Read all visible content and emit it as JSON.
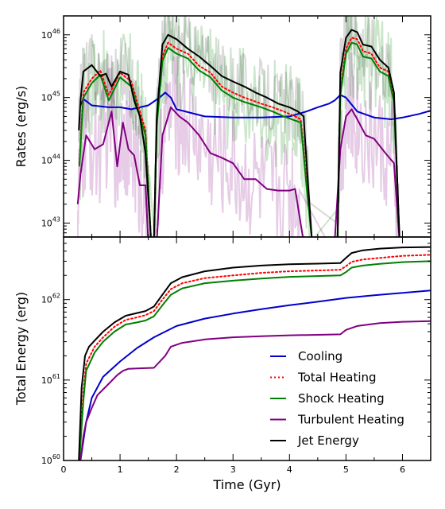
{
  "chart_data": [
    {
      "type": "line",
      "panel": "top",
      "xlim": [
        0,
        6.5
      ],
      "ylim": [
        6e+42,
        2e+46
      ],
      "yscale": "log",
      "xlabel": "",
      "ylabel": "Rates (erg/s)",
      "yticks": [
        {
          "value": 1e+43,
          "base": "10",
          "exp": "43"
        },
        {
          "value": 1e+44,
          "base": "10",
          "exp": "44"
        },
        {
          "value": 1e+45,
          "base": "10",
          "exp": "45"
        },
        {
          "value": 1e+46,
          "base": "10",
          "exp": "46"
        }
      ],
      "series": [
        {
          "name": "Cooling",
          "color": "#0000cc",
          "style": "solid",
          "x": [
            0.3,
            0.35,
            0.5,
            0.8,
            1.0,
            1.2,
            1.5,
            1.7,
            1.8,
            1.9,
            2.0,
            2.5,
            3.0,
            3.5,
            4.0,
            4.3,
            4.5,
            4.7,
            4.8,
            4.9,
            5.0,
            5.2,
            5.5,
            5.8,
            6.0,
            6.3,
            6.5
          ],
          "y": [
            7.5e+44,
            9.5e+44,
            7.5e+44,
            7e+44,
            7e+44,
            6.5e+44,
            7.5e+44,
            1e+45,
            1.2e+45,
            1e+45,
            6.5e+44,
            5e+44,
            4.8e+44,
            4.8e+44,
            5e+44,
            6e+44,
            7e+44,
            8e+44,
            9e+44,
            1.1e+45,
            1e+45,
            6e+44,
            4.8e+44,
            4.5e+44,
            4.8e+44,
            5.5e+44,
            6.2e+44
          ]
        },
        {
          "name": "Total Heating",
          "color": "#ff0000",
          "style": "dotted",
          "x": [
            0.28,
            0.35,
            0.5,
            0.65,
            0.8,
            1.0,
            1.2,
            1.35,
            1.45,
            1.55,
            1.6,
            1.65,
            1.75,
            1.85,
            2.0,
            2.2,
            2.4,
            2.6,
            2.8,
            3.0,
            3.2,
            3.5,
            3.7,
            3.9,
            4.1,
            4.2,
            4.3,
            4.4,
            4.85,
            4.9,
            5.0,
            5.1,
            5.2,
            5.3,
            5.45,
            5.6,
            5.75,
            5.85,
            5.95
          ],
          "y": [
            9e+43,
            1.2e+45,
            2e+45,
            2.7e+45,
            1.1e+45,
            2.5e+45,
            1.8e+45,
            6e+44,
            3e+44,
            5e+42,
            5e+42,
            4e+44,
            4.5e+45,
            7.5e+45,
            6e+45,
            5e+45,
            3.2e+45,
            2.5e+45,
            1.5e+45,
            1.2e+45,
            1e+45,
            8e+44,
            7e+44,
            6e+44,
            5e+44,
            4.5e+44,
            5e+43,
            5e+42,
            5e+42,
            1.3e+45,
            6e+45,
            9e+45,
            8.5e+45,
            5.5e+45,
            5e+45,
            3e+45,
            2.6e+45,
            1e+45,
            5e+42
          ]
        },
        {
          "name": "Shock Heating",
          "color": "#008000",
          "style": "solid",
          "x": [
            0.28,
            0.35,
            0.5,
            0.65,
            0.8,
            1.0,
            1.2,
            1.35,
            1.45,
            1.55,
            1.6,
            1.65,
            1.75,
            1.85,
            2.0,
            2.2,
            2.4,
            2.6,
            2.8,
            3.0,
            3.2,
            3.5,
            3.7,
            3.9,
            4.1,
            4.2,
            4.3,
            4.4,
            4.85,
            4.9,
            5.0,
            5.1,
            5.2,
            5.3,
            5.45,
            5.6,
            5.75,
            5.85,
            5.95
          ],
          "y": [
            8e+43,
            1e+45,
            1.7e+45,
            2.3e+45,
            9e+44,
            2.1e+45,
            1.5e+45,
            5e+44,
            2.5e+44,
            5e+42,
            5e+42,
            3.5e+44,
            3.8e+45,
            6.2e+45,
            5e+45,
            4.2e+45,
            2.7e+45,
            2.1e+45,
            1.3e+45,
            1e+45,
            8.5e+44,
            7e+44,
            6e+44,
            5e+44,
            4.3e+44,
            4e+44,
            4e+43,
            5e+42,
            5e+42,
            1.1e+45,
            5e+45,
            7.5e+45,
            7e+45,
            4.5e+45,
            4.2e+45,
            2.6e+45,
            2.2e+45,
            8.5e+44,
            5e+42
          ]
        },
        {
          "name": "Turbulent Heating",
          "color": "#800080",
          "style": "solid",
          "x": [
            0.25,
            0.3,
            0.4,
            0.55,
            0.7,
            0.85,
            0.95,
            1.05,
            1.15,
            1.25,
            1.35,
            1.45,
            1.5,
            1.65,
            1.75,
            1.9,
            2.05,
            2.2,
            2.4,
            2.6,
            2.8,
            3.0,
            3.2,
            3.4,
            3.6,
            3.8,
            4.0,
            4.1,
            4.25,
            4.35,
            4.8,
            4.9,
            5.0,
            5.1,
            5.2,
            5.35,
            5.5,
            5.7,
            5.85,
            5.95
          ],
          "y": [
            2e+43,
            6e+43,
            2.5e+44,
            1.5e+44,
            1.8e+44,
            6e+44,
            8e+43,
            4e+44,
            1.5e+44,
            1.2e+44,
            4e+43,
            4e+43,
            5e+42,
            5e+42,
            2.5e+44,
            7e+44,
            5e+44,
            4e+44,
            2.5e+44,
            1.3e+44,
            1.1e+44,
            9e+43,
            5e+43,
            5e+43,
            3.5e+43,
            3.3e+43,
            3.3e+43,
            3.5e+43,
            5e+42,
            5e+42,
            5e+42,
            1.5e+44,
            5e+44,
            6.5e+44,
            4.5e+44,
            2.5e+44,
            2.2e+44,
            1.3e+44,
            9e+43,
            5e+42
          ]
        },
        {
          "name": "Jet Energy",
          "color": "#000000",
          "style": "solid",
          "x": [
            0.27,
            0.3,
            0.35,
            0.5,
            0.65,
            0.75,
            0.85,
            1.0,
            1.15,
            1.25,
            1.35,
            1.45,
            1.55,
            1.6,
            1.65,
            1.75,
            1.85,
            2.0,
            2.2,
            2.4,
            2.6,
            2.8,
            3.0,
            3.2,
            3.4,
            3.6,
            3.8,
            4.0,
            4.15,
            4.25,
            4.3,
            4.4,
            4.85,
            4.9,
            5.0,
            5.1,
            5.2,
            5.3,
            5.45,
            5.6,
            5.75,
            5.85,
            5.95
          ],
          "y": [
            3e+44,
            9e+44,
            2.6e+45,
            3.3e+45,
            2.2e+45,
            2.4e+45,
            1.5e+45,
            2.6e+45,
            2.3e+45,
            9e+44,
            5e+44,
            1.3e+44,
            5e+42,
            5e+42,
            5e+44,
            7e+45,
            1e+46,
            8.5e+45,
            6e+45,
            4.5e+45,
            3.2e+45,
            2.2e+45,
            1.8e+45,
            1.5e+45,
            1.2e+45,
            1e+45,
            8e+44,
            7e+44,
            6e+44,
            5e+44,
            1e+44,
            5e+42,
            5e+42,
            2.5e+45,
            9e+45,
            1.2e+46,
            1.1e+46,
            7e+45,
            6.5e+45,
            4e+45,
            3e+45,
            1.2e+45,
            5e+42
          ]
        }
      ],
      "noise_bands": [
        {
          "name": "",
          "color": "#008000",
          "opacity": 0.2,
          "amplitude": 0.55,
          "ref": "Shock Heating"
        },
        {
          "name": "",
          "color": "#800080",
          "opacity": 0.2,
          "amplitude": 0.6,
          "ref": "Turbulent Heating"
        },
        {
          "name": "",
          "color": "#000000",
          "opacity": 0.15,
          "amplitude": 0.35,
          "ref": "Jet Energy"
        }
      ]
    },
    {
      "type": "line",
      "panel": "bottom",
      "xlim": [
        0,
        6.5
      ],
      "ylim": [
        1e+60,
        6e+62
      ],
      "yscale": "log",
      "xlabel": "Time (Gyr)",
      "ylabel": "Total Energy (erg)",
      "xticks": [
        "0",
        "1",
        "2",
        "3",
        "4",
        "5",
        "6"
      ],
      "yticks": [
        {
          "value": 1e+60,
          "base": "10",
          "exp": "60"
        },
        {
          "value": 1e+61,
          "base": "10",
          "exp": "61"
        },
        {
          "value": 1e+62,
          "base": "10",
          "exp": "62"
        }
      ],
      "legend_position": "lower right",
      "series": [
        {
          "name": "Cooling",
          "color": "#0000cc",
          "style": "solid",
          "x": [
            0.3,
            0.4,
            0.5,
            0.7,
            1.0,
            1.3,
            1.6,
            1.8,
            2.0,
            2.5,
            3.0,
            3.5,
            4.0,
            4.5,
            5.0,
            5.5,
            6.0,
            6.5
          ],
          "y": [
            1e+60,
            3e+60,
            6e+60,
            1.1e+61,
            1.7e+61,
            2.5e+61,
            3.4e+61,
            4e+61,
            4.7e+61,
            5.8e+61,
            6.7e+61,
            7.6e+61,
            8.5e+61,
            9.4e+61,
            1.05e+62,
            1.13e+62,
            1.21e+62,
            1.3e+62
          ]
        },
        {
          "name": "Total Heating",
          "color": "#ff0000",
          "style": "dotted",
          "x": [
            0.28,
            0.35,
            0.4,
            0.55,
            0.7,
            0.9,
            1.1,
            1.3,
            1.45,
            1.6,
            1.75,
            1.9,
            2.1,
            2.5,
            3.0,
            3.5,
            4.0,
            4.5,
            4.9,
            5.0,
            5.1,
            5.3,
            5.6,
            6.0,
            6.5
          ],
          "y": [
            1e+60,
            7e+60,
            1.6e+61,
            2.6e+61,
            3.4e+61,
            4.6e+61,
            5.6e+61,
            6e+61,
            6.4e+61,
            7.2e+61,
            1e+62,
            1.35e+62,
            1.6e+62,
            1.85e+62,
            2e+62,
            2.15e+62,
            2.25e+62,
            2.3e+62,
            2.35e+62,
            2.6e+62,
            2.95e+62,
            3.15e+62,
            3.3e+62,
            3.5e+62,
            3.6e+62
          ]
        },
        {
          "name": "Shock Heating",
          "color": "#008000",
          "style": "solid",
          "x": [
            0.28,
            0.35,
            0.4,
            0.55,
            0.7,
            0.9,
            1.1,
            1.3,
            1.45,
            1.6,
            1.75,
            1.9,
            2.1,
            2.5,
            3.0,
            3.5,
            4.0,
            4.5,
            4.9,
            5.0,
            5.1,
            5.3,
            5.6,
            6.0,
            6.5
          ],
          "y": [
            1e+60,
            5.5e+60,
            1.3e+61,
            2.2e+61,
            3e+61,
            4e+61,
            4.9e+61,
            5.2e+61,
            5.5e+61,
            6.2e+61,
            8.5e+61,
            1.15e+62,
            1.38e+62,
            1.6e+62,
            1.72e+62,
            1.83e+62,
            1.92e+62,
            1.96e+62,
            2e+62,
            2.2e+62,
            2.5e+62,
            2.65e+62,
            2.78e+62,
            2.92e+62,
            3e+62
          ]
        },
        {
          "name": "Turbulent Heating",
          "color": "#800080",
          "style": "solid",
          "x": [
            0.3,
            0.35,
            0.4,
            0.5,
            0.6,
            0.8,
            0.95,
            1.05,
            1.15,
            1.35,
            1.6,
            1.8,
            1.9,
            2.1,
            2.5,
            3.0,
            3.5,
            4.0,
            4.5,
            4.9,
            5.0,
            5.2,
            5.6,
            6.0,
            6.5
          ],
          "y": [
            1e+60,
            2e+60,
            3e+60,
            4.5e+60,
            6.5e+60,
            9e+60,
            1.15e+61,
            1.3e+61,
            1.38e+61,
            1.4e+61,
            1.42e+61,
            2e+61,
            2.6e+61,
            2.9e+61,
            3.2e+61,
            3.4e+61,
            3.5e+61,
            3.6e+61,
            3.65e+61,
            3.7e+61,
            4.2e+61,
            4.7e+61,
            5.1e+61,
            5.3e+61,
            5.4e+61
          ]
        },
        {
          "name": "Jet Energy",
          "color": "#000000",
          "style": "solid",
          "x": [
            0.27,
            0.32,
            0.38,
            0.45,
            0.55,
            0.7,
            0.9,
            1.1,
            1.3,
            1.45,
            1.6,
            1.75,
            1.9,
            2.1,
            2.5,
            3.0,
            3.5,
            4.0,
            4.5,
            4.9,
            5.0,
            5.1,
            5.3,
            5.6,
            6.0,
            6.5
          ],
          "y": [
            1e+60,
            8e+60,
            2e+61,
            2.6e+61,
            3.1e+61,
            4e+61,
            5.2e+61,
            6.3e+61,
            6.8e+61,
            7.2e+61,
            8.2e+61,
            1.15e+62,
            1.6e+62,
            1.9e+62,
            2.25e+62,
            2.5e+62,
            2.65e+62,
            2.75e+62,
            2.8e+62,
            2.85e+62,
            3.3e+62,
            3.8e+62,
            4.1e+62,
            4.3e+62,
            4.45e+62,
            4.5e+62
          ]
        }
      ]
    }
  ]
}
